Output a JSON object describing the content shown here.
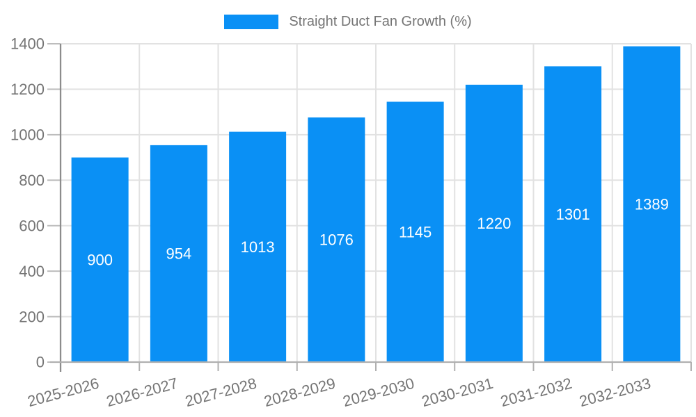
{
  "page": {
    "background": "#ffffff"
  },
  "legend": {
    "label": "Straight Duct Fan Growth (%)"
  },
  "chart_data": {
    "type": "bar",
    "title": "Straight Duct Fan Growth (%)",
    "categories": [
      "2025-2026",
      "2026-2027",
      "2027-2028",
      "2028-2029",
      "2029-2030",
      "2030-2031",
      "2031-2032",
      "2032-2033"
    ],
    "values": [
      900,
      954,
      1013,
      1076,
      1145,
      1220,
      1301,
      1389
    ],
    "xlabel": "",
    "ylabel": "",
    "ylim": [
      0,
      1400
    ],
    "yticks": [
      0,
      200,
      400,
      600,
      800,
      1000,
      1200,
      1400
    ],
    "grid": true,
    "legend_position": "top-center",
    "x_tick_rotation_deg": -15,
    "colors": {
      "bar": "#0a90f5",
      "value_label": "#ffffff",
      "grid": "#e2e2e2",
      "y_axis": "#8c8c8c",
      "x_axis": "#b0b0b0",
      "tick": "#bdbdbd",
      "tick_label": "#757575"
    }
  }
}
